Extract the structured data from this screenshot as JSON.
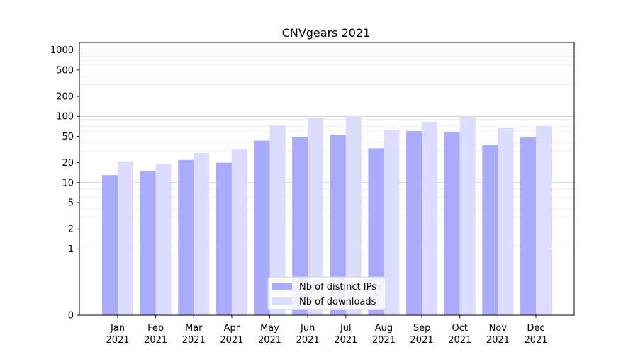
{
  "chart_data": {
    "type": "bar",
    "title": "CNVgears 2021",
    "xlabel": "",
    "ylabel": "",
    "yscale": "symlog",
    "ylim": [
      0,
      1300
    ],
    "yticks": [
      0,
      1,
      2,
      5,
      10,
      20,
      50,
      100,
      200,
      500,
      1000
    ],
    "ytick_labels": [
      "0",
      "1",
      "2",
      "5",
      "10",
      "20",
      "50",
      "100",
      "200",
      "500",
      "1000"
    ],
    "grid": true,
    "legend_position": "lower-center",
    "categories": [
      {
        "month": "Jan",
        "year": "2021"
      },
      {
        "month": "Feb",
        "year": "2021"
      },
      {
        "month": "Mar",
        "year": "2021"
      },
      {
        "month": "Apr",
        "year": "2021"
      },
      {
        "month": "May",
        "year": "2021"
      },
      {
        "month": "Jun",
        "year": "2021"
      },
      {
        "month": "Jul",
        "year": "2021"
      },
      {
        "month": "Aug",
        "year": "2021"
      },
      {
        "month": "Sep",
        "year": "2021"
      },
      {
        "month": "Oct",
        "year": "2021"
      },
      {
        "month": "Nov",
        "year": "2021"
      },
      {
        "month": "Dec",
        "year": "2021"
      }
    ],
    "series": [
      {
        "name": "Nb of distinct IPs",
        "color": "#aaaaff",
        "values": [
          13,
          15,
          22,
          20,
          43,
          49,
          53,
          33,
          60,
          58,
          37,
          48
        ]
      },
      {
        "name": "Nb of downloads",
        "color": "#dcdcff",
        "values": [
          21,
          19,
          28,
          32,
          73,
          95,
          101,
          62,
          83,
          98,
          67,
          72
        ]
      }
    ]
  }
}
